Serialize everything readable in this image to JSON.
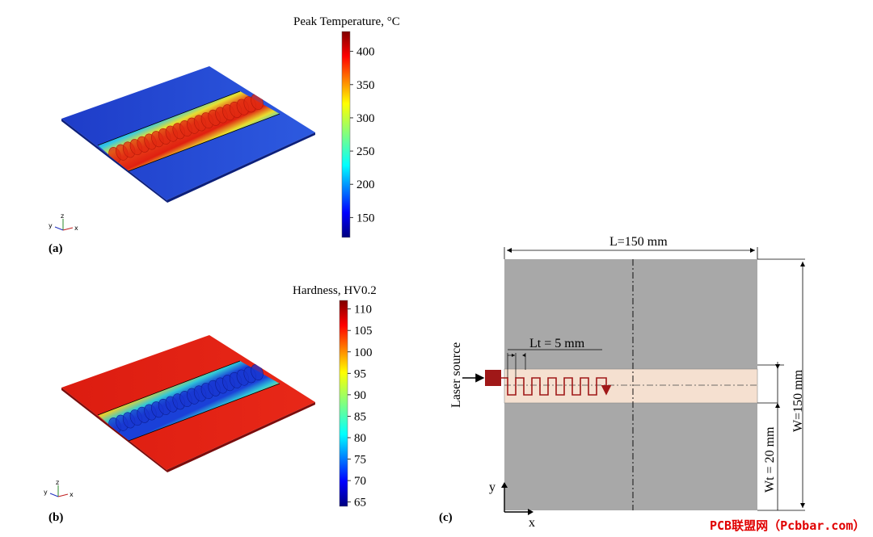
{
  "panel_a": {
    "label": "(a)",
    "colorbar_title": "Peak Temperature, °C",
    "ticks": [
      "400",
      "350",
      "300",
      "250",
      "200",
      "150"
    ],
    "tick_values": [
      400,
      350,
      300,
      250,
      200,
      150
    ],
    "range": [
      120,
      430
    ],
    "axes": {
      "x": "x",
      "y": "y",
      "z": "z"
    }
  },
  "panel_b": {
    "label": "(b)",
    "colorbar_title": "Hardness, HV0.2",
    "ticks": [
      "110",
      "105",
      "100",
      "95",
      "90",
      "85",
      "80",
      "75",
      "70",
      "65"
    ],
    "tick_values": [
      110,
      105,
      100,
      95,
      90,
      85,
      80,
      75,
      70,
      65
    ],
    "range": [
      64,
      112
    ],
    "axes": {
      "x": "x",
      "y": "y",
      "z": "z"
    }
  },
  "panel_c": {
    "label": "(c)",
    "length_label": "L=150 mm",
    "width_label": "W=150 mm",
    "track_width_label": "Wt = 20 mm",
    "step_label": "Lt = 5 mm",
    "laser_label": "Laser source",
    "axis_x": "x",
    "axis_y": "y"
  },
  "watermark": "PCB联盟网（Pcbbar.com）",
  "colors": {
    "plate": "#a8a8a8",
    "track": "#f5e0d0",
    "scan_path": "#a01818",
    "watermark": "#e00000"
  }
}
